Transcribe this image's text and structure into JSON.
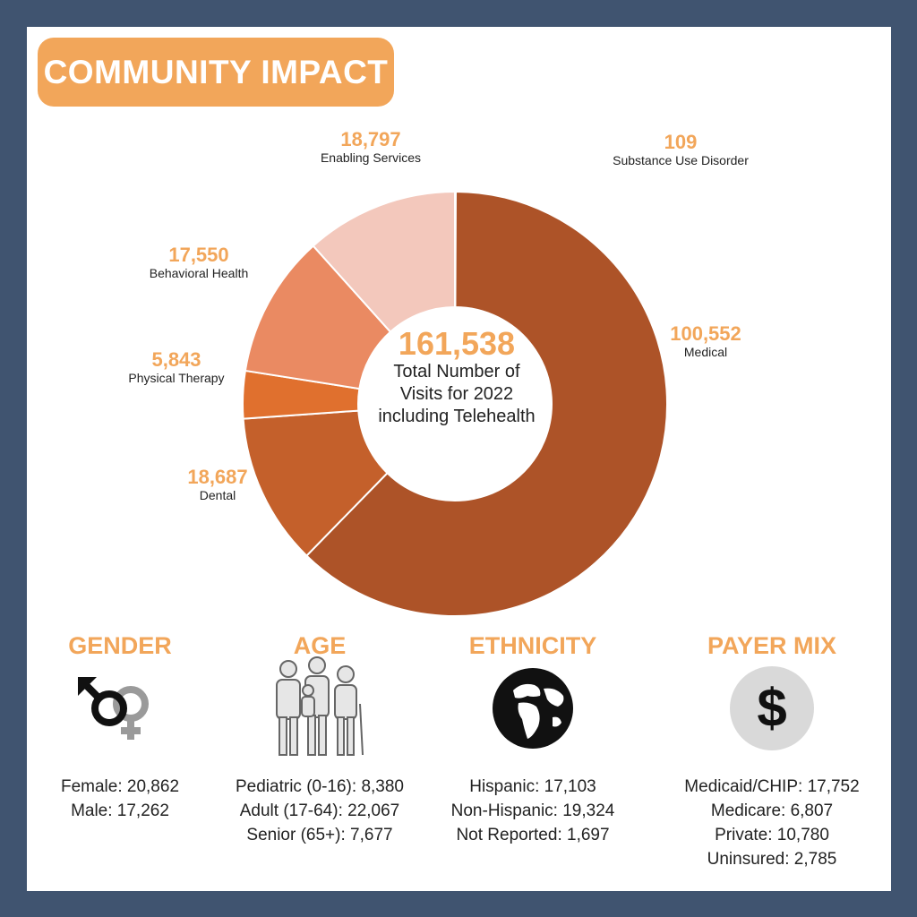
{
  "title": "COMMUNITY IMPACT",
  "center": {
    "total": "161,538",
    "caption_lines": [
      "Total Number of",
      "Visits for 2022",
      "including Telehealth"
    ]
  },
  "chart_data": {
    "type": "pie",
    "title": "",
    "slices": [
      {
        "label": "Substance Use Disorder",
        "value": 109,
        "display": "109",
        "color": "#b85a2e"
      },
      {
        "label": "Medical",
        "value": 100552,
        "display": "100,552",
        "color": "#ad5328"
      },
      {
        "label": "Dental",
        "value": 18687,
        "display": "18,687",
        "color": "#c4602b"
      },
      {
        "label": "Physical Therapy",
        "value": 5843,
        "display": "5,843",
        "color": "#e0702e"
      },
      {
        "label": "Behavioral Health",
        "value": 17550,
        "display": "17,550",
        "color": "#ea8a62"
      },
      {
        "label": "Enabling Services",
        "value": 18797,
        "display": "18,797",
        "color": "#f3c8bc"
      }
    ]
  },
  "colors": {
    "accent": "#f2a65a",
    "frame": "#405470"
  },
  "stats": {
    "gender": {
      "heading": "GENDER",
      "icon": "gender-symbols-icon",
      "lines": [
        "Female: 20,862",
        "Male: 17,262"
      ]
    },
    "age": {
      "heading": "AGE",
      "icon": "family-group-icon",
      "lines": [
        "Pediatric (0-16): 8,380",
        "Adult (17-64): 22,067",
        "Senior (65+): 7,677"
      ]
    },
    "ethnicity": {
      "heading": "ETHNICITY",
      "icon": "globe-icon",
      "lines": [
        "Hispanic: 17,103",
        "Non-Hispanic: 19,324",
        "Not Reported: 1,697"
      ]
    },
    "payer": {
      "heading": "PAYER MIX",
      "icon": "dollar-sign-icon",
      "lines": [
        "Medicaid/CHIP: 17,752",
        "Medicare: 6,807",
        "Private: 10,780",
        "Uninsured: 2,785"
      ]
    }
  }
}
